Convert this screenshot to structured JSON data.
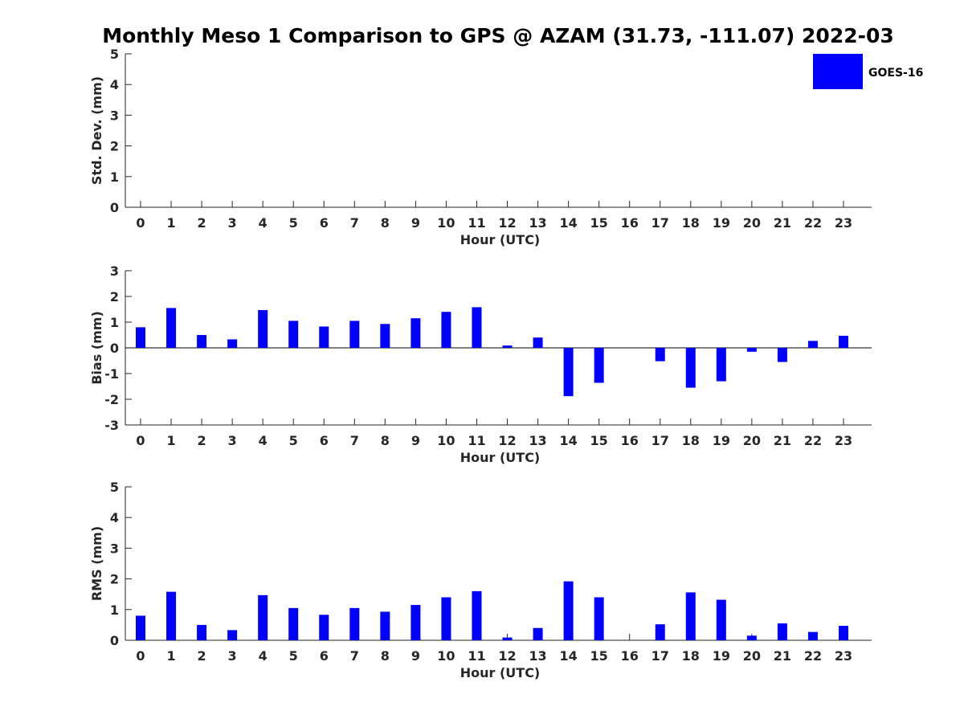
{
  "title": "Monthly Meso 1 Comparison to GPS @ AZAM (31.73, -111.07) 2022-03",
  "colors": {
    "series": "#0000ff",
    "axis": "#262626"
  },
  "legend": {
    "label": "GOES-16",
    "placement": "top-right"
  },
  "chart_data": [
    {
      "type": "bar",
      "ylabel": "Std. Dev. (mm)",
      "xlabel": "Hour (UTC)",
      "ylim": [
        0,
        5
      ],
      "yticks": [
        "0",
        "1",
        "2",
        "3",
        "4",
        "5"
      ],
      "categories": [
        "0",
        "1",
        "2",
        "3",
        "4",
        "5",
        "6",
        "7",
        "8",
        "9",
        "10",
        "11",
        "12",
        "13",
        "14",
        "15",
        "16",
        "17",
        "18",
        "19",
        "20",
        "21",
        "22",
        "23"
      ],
      "series": [
        {
          "name": "GOES-16",
          "values": [
            0,
            0,
            0,
            0,
            0,
            0,
            0,
            0,
            0,
            0,
            0,
            0,
            0,
            0,
            0,
            0,
            0,
            0,
            0,
            0,
            0,
            0,
            0,
            0
          ]
        }
      ]
    },
    {
      "type": "bar",
      "ylabel": "Bias (mm)",
      "xlabel": "Hour (UTC)",
      "ylim": [
        -3,
        3
      ],
      "yticks": [
        "-3",
        "-2",
        "-1",
        "0",
        "1",
        "2",
        "3"
      ],
      "categories": [
        "0",
        "1",
        "2",
        "3",
        "4",
        "5",
        "6",
        "7",
        "8",
        "9",
        "10",
        "11",
        "12",
        "13",
        "14",
        "15",
        "16",
        "17",
        "18",
        "19",
        "20",
        "21",
        "22",
        "23"
      ],
      "series": [
        {
          "name": "GOES-16",
          "values": [
            0.8,
            1.55,
            0.5,
            0.33,
            1.47,
            1.05,
            0.83,
            1.05,
            0.93,
            1.15,
            1.4,
            1.58,
            0.09,
            0.4,
            -1.88,
            -1.36,
            0,
            -0.52,
            -1.55,
            -1.3,
            -0.15,
            -0.55,
            0.27,
            0.47
          ]
        }
      ]
    },
    {
      "type": "bar",
      "ylabel": "RMS (mm)",
      "xlabel": "Hour (UTC)",
      "ylim": [
        0,
        5
      ],
      "yticks": [
        "0",
        "1",
        "2",
        "3",
        "4",
        "5"
      ],
      "categories": [
        "0",
        "1",
        "2",
        "3",
        "4",
        "5",
        "6",
        "7",
        "8",
        "9",
        "10",
        "11",
        "12",
        "13",
        "14",
        "15",
        "16",
        "17",
        "18",
        "19",
        "20",
        "21",
        "22",
        "23"
      ],
      "series": [
        {
          "name": "GOES-16",
          "values": [
            0.8,
            1.58,
            0.5,
            0.33,
            1.47,
            1.05,
            0.83,
            1.05,
            0.93,
            1.15,
            1.4,
            1.6,
            0.09,
            0.4,
            1.92,
            1.4,
            0,
            0.52,
            1.56,
            1.32,
            0.15,
            0.55,
            0.27,
            0.47
          ]
        }
      ]
    }
  ]
}
